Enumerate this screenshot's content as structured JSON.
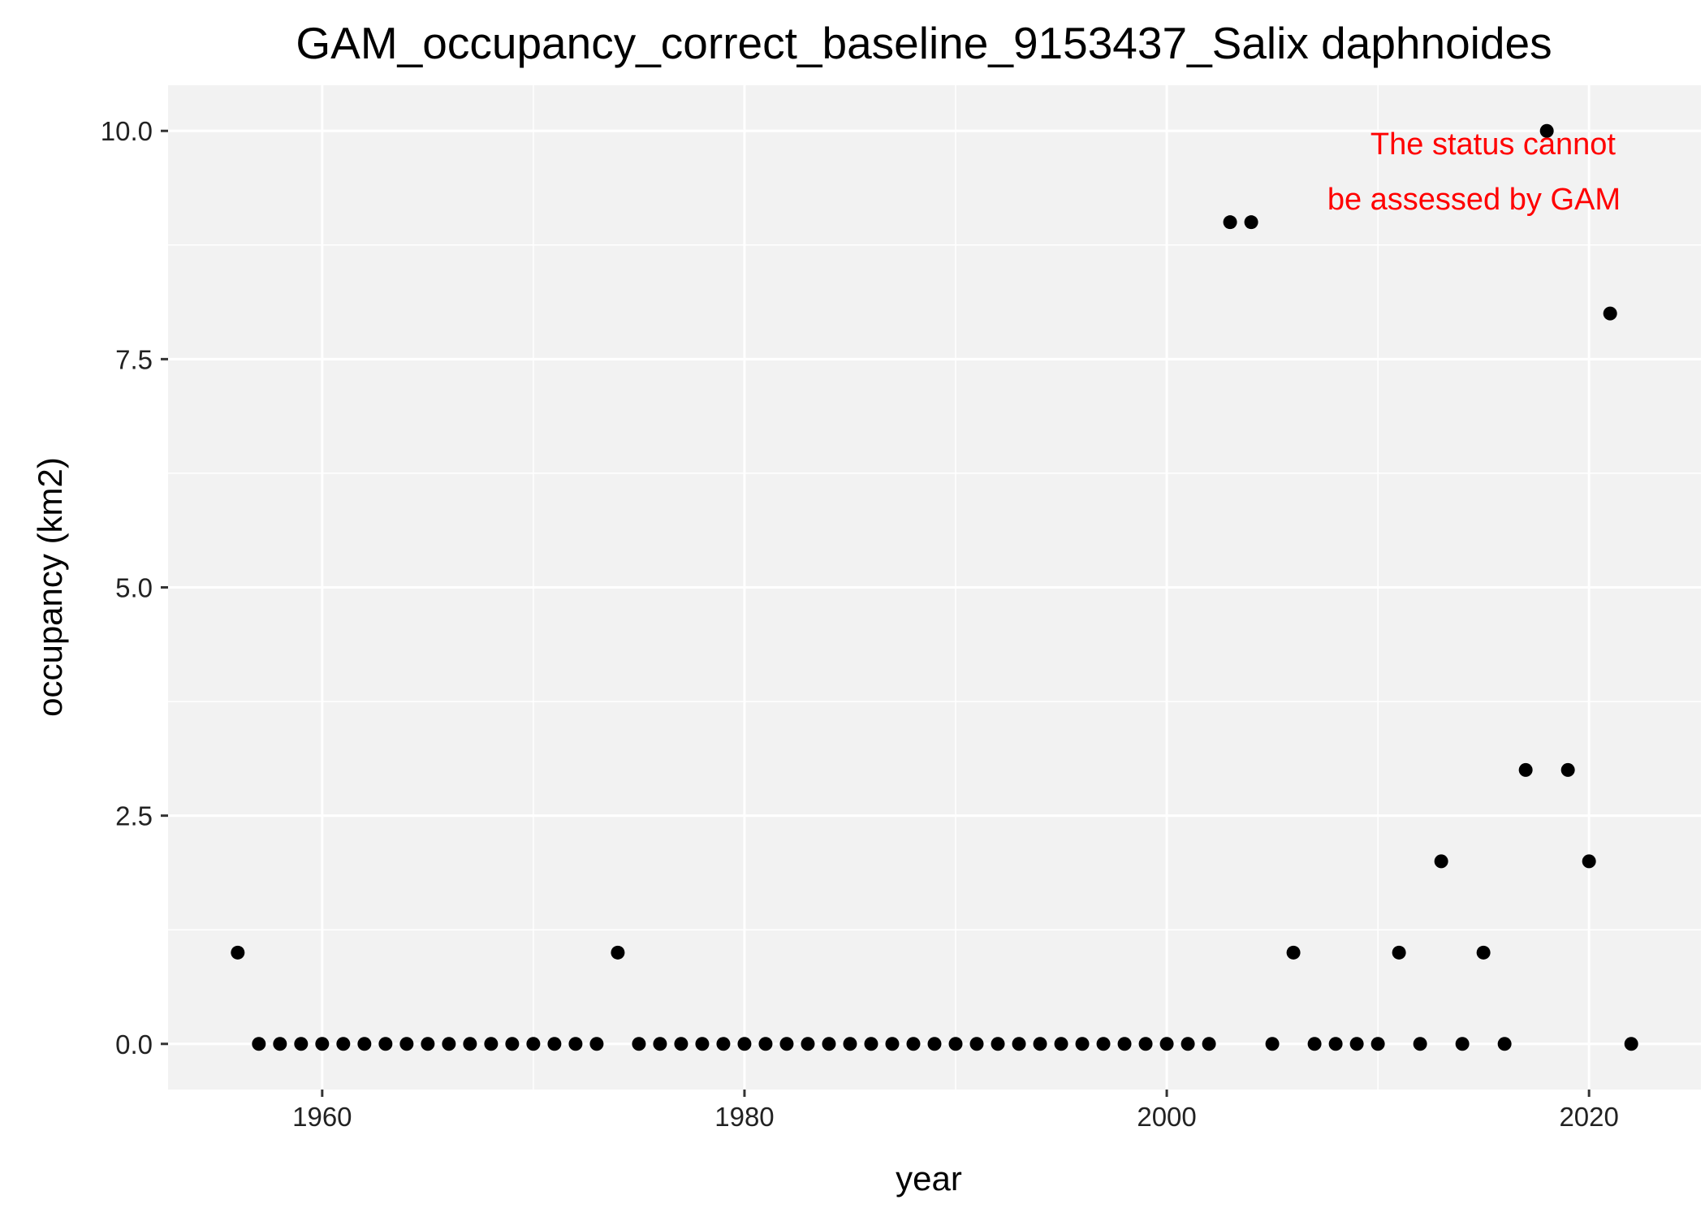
{
  "chart_data": {
    "type": "scatter",
    "title": "GAM_occupancy_correct_baseline_9153437_Salix daphnoides",
    "xlabel": "year",
    "ylabel": "occupancy (km2)",
    "xlim": [
      1952.7,
      2025.3
    ],
    "ylim": [
      -0.5,
      10.5
    ],
    "x_ticks": [
      1960,
      1980,
      2000,
      2020
    ],
    "y_ticks": [
      0.0,
      2.5,
      5.0,
      7.5,
      10.0
    ],
    "x_tick_labels": [
      "1960",
      "1980",
      "2000",
      "2020"
    ],
    "y_tick_labels": [
      "0.0",
      "2.5",
      "5.0",
      "7.5",
      "10.0"
    ],
    "grid": true,
    "panel_color": "#f2f2f2",
    "point_color": "#000000",
    "series": [
      {
        "x": [
          1956,
          1957,
          1958,
          1959,
          1960,
          1961,
          1962,
          1963,
          1964,
          1965,
          1966,
          1967,
          1968,
          1969,
          1970,
          1971,
          1972,
          1973,
          1974,
          1975,
          1976,
          1977,
          1978,
          1979,
          1980,
          1981,
          1982,
          1983,
          1984,
          1985,
          1986,
          1987,
          1988,
          1989,
          1990,
          1991,
          1992,
          1993,
          1994,
          1995,
          1996,
          1997,
          1998,
          1999,
          2000,
          2001,
          2002,
          2003,
          2004,
          2005,
          2006,
          2007,
          2008,
          2009,
          2010,
          2011,
          2012,
          2013,
          2014,
          2015,
          2016,
          2017,
          2018,
          2019,
          2020,
          2021,
          2022
        ],
        "y": [
          1,
          0,
          0,
          0,
          0,
          0,
          0,
          0,
          0,
          0,
          0,
          0,
          0,
          0,
          0,
          0,
          0,
          0,
          1,
          0,
          0,
          0,
          0,
          0,
          0,
          0,
          0,
          0,
          0,
          0,
          0,
          0,
          0,
          0,
          0,
          0,
          0,
          0,
          0,
          0,
          0,
          0,
          0,
          0,
          0,
          0,
          0,
          9,
          9,
          0,
          1,
          0,
          0,
          0,
          0,
          1,
          0,
          2,
          0,
          1,
          0,
          3,
          10,
          3,
          2,
          8,
          0
        ]
      }
    ],
    "annotation": {
      "lines": [
        "The status cannot",
        "be assessed by GAM"
      ],
      "color": "#ff0000",
      "position": "top-right"
    }
  }
}
